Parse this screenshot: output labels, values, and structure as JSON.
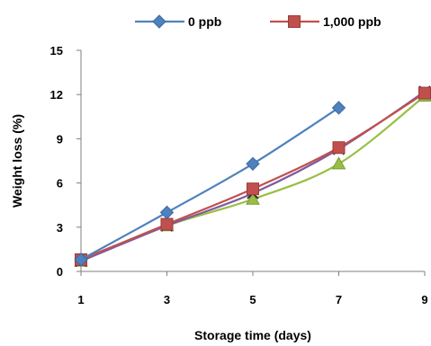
{
  "chart_data": {
    "type": "line",
    "xlabel": "Storage time (days)",
    "ylabel": "Weight loss (%)",
    "x": [
      1,
      3,
      5,
      7,
      9
    ],
    "x_ticks": [
      "1",
      "3",
      "5",
      "7",
      "9"
    ],
    "y_ticks": [
      "0",
      "3",
      "6",
      "9",
      "12",
      "15"
    ],
    "xlim": [
      1,
      9
    ],
    "ylim": [
      0,
      15
    ],
    "grid": false,
    "legend_position": "top",
    "series": [
      {
        "name": "",
        "color": "#98bf45",
        "marker": "triangle",
        "values": [
          0.7,
          3.1,
          4.9,
          7.3,
          11.9
        ]
      },
      {
        "name": "",
        "color": "#7e5aa0",
        "marker": "x",
        "values": [
          0.7,
          3.1,
          5.3,
          8.3,
          12.2
        ]
      },
      {
        "name": "1,000 ppb",
        "color": "#c0504d",
        "marker": "square",
        "values": [
          0.8,
          3.2,
          5.6,
          8.4,
          12.1
        ]
      },
      {
        "name": "0 ppb",
        "color": "#4f81bd",
        "marker": "diamond",
        "values": [
          0.8,
          4.0,
          7.3,
          11.1,
          null
        ]
      }
    ]
  }
}
